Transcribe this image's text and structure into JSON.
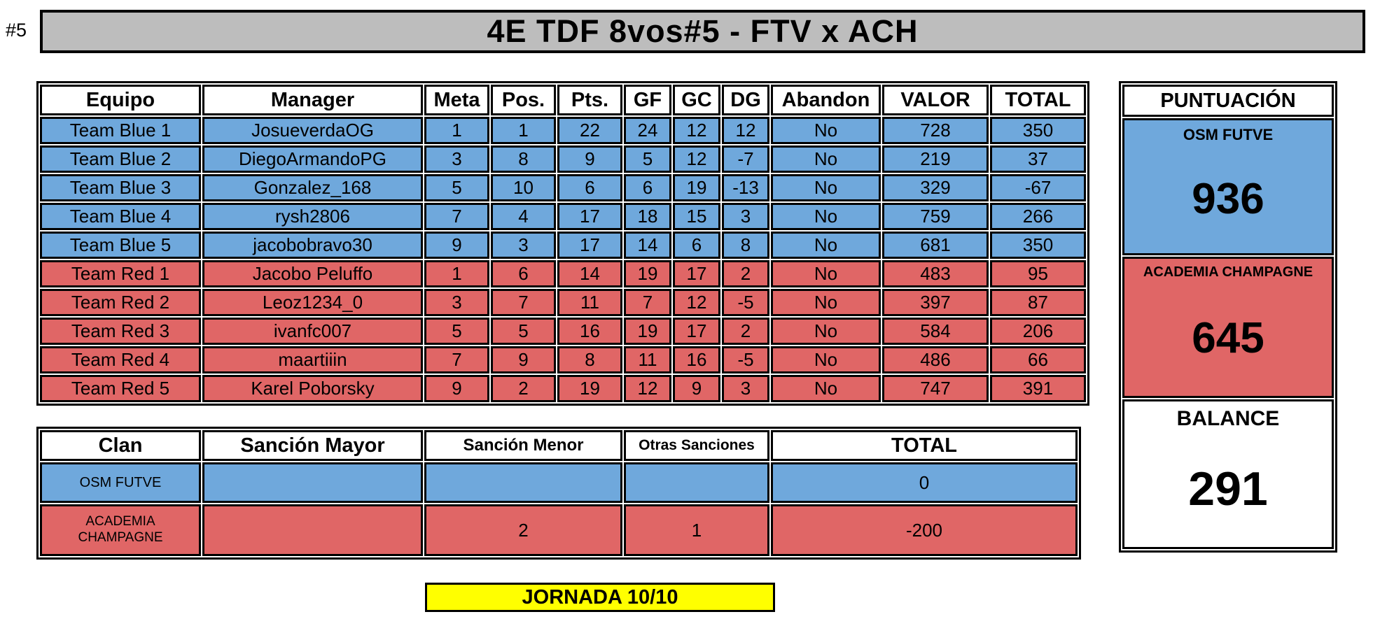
{
  "header": {
    "tag": "#5",
    "title": "4E TDF 8vos#5 - FTV x ACH"
  },
  "standings": {
    "columns": [
      "Equipo",
      "Manager",
      "Meta",
      "Pos.",
      "Pts.",
      "GF",
      "GC",
      "DG",
      "Abandon",
      "VALOR",
      "TOTAL"
    ],
    "rows": [
      {
        "side": "blue",
        "team": "Team Blue 1",
        "manager": "JosueverdaOG",
        "meta": "1",
        "pos": "1",
        "pts": "22",
        "gf": "24",
        "gc": "12",
        "dg": "12",
        "abandon": "No",
        "valor": "728",
        "total": "350"
      },
      {
        "side": "blue",
        "team": "Team Blue 2",
        "manager": "DiegoArmandoPG",
        "meta": "3",
        "pos": "8",
        "pts": "9",
        "gf": "5",
        "gc": "12",
        "dg": "-7",
        "abandon": "No",
        "valor": "219",
        "total": "37"
      },
      {
        "side": "blue",
        "team": "Team Blue 3",
        "manager": "Gonzalez_168",
        "meta": "5",
        "pos": "10",
        "pts": "6",
        "gf": "6",
        "gc": "19",
        "dg": "-13",
        "abandon": "No",
        "valor": "329",
        "total": "-67"
      },
      {
        "side": "blue",
        "team": "Team Blue 4",
        "manager": "rysh2806",
        "meta": "7",
        "pos": "4",
        "pts": "17",
        "gf": "18",
        "gc": "15",
        "dg": "3",
        "abandon": "No",
        "valor": "759",
        "total": "266"
      },
      {
        "side": "blue",
        "team": "Team Blue 5",
        "manager": "jacobobravo30",
        "meta": "9",
        "pos": "3",
        "pts": "17",
        "gf": "14",
        "gc": "6",
        "dg": "8",
        "abandon": "No",
        "valor": "681",
        "total": "350"
      },
      {
        "side": "red",
        "team": "Team Red 1",
        "manager": "Jacobo Peluffo",
        "meta": "1",
        "pos": "6",
        "pts": "14",
        "gf": "19",
        "gc": "17",
        "dg": "2",
        "abandon": "No",
        "valor": "483",
        "total": "95"
      },
      {
        "side": "red",
        "team": "Team Red 2",
        "manager": "Leoz1234_0",
        "meta": "3",
        "pos": "7",
        "pts": "11",
        "gf": "7",
        "gc": "12",
        "dg": "-5",
        "abandon": "No",
        "valor": "397",
        "total": "87"
      },
      {
        "side": "red",
        "team": "Team Red 3",
        "manager": "ivanfc007",
        "meta": "5",
        "pos": "5",
        "pts": "16",
        "gf": "19",
        "gc": "17",
        "dg": "2",
        "abandon": "No",
        "valor": "584",
        "total": "206"
      },
      {
        "side": "red",
        "team": "Team Red 4",
        "manager": "maartiiin",
        "meta": "7",
        "pos": "9",
        "pts": "8",
        "gf": "11",
        "gc": "16",
        "dg": "-5",
        "abandon": "No",
        "valor": "486",
        "total": "66"
      },
      {
        "side": "red",
        "team": "Team Red 5",
        "manager": "Karel Poborsky",
        "meta": "9",
        "pos": "2",
        "pts": "19",
        "gf": "12",
        "gc": "9",
        "dg": "3",
        "abandon": "No",
        "valor": "747",
        "total": "391"
      }
    ]
  },
  "score_panel": {
    "title": "PUNTUACIÓN",
    "blue_team": {
      "name": "OSM FUTVE",
      "score": "936"
    },
    "red_team": {
      "name": "ACADEMIA CHAMPAGNE",
      "score": "645"
    },
    "balance": {
      "label": "BALANCE",
      "value": "291"
    }
  },
  "sanctions": {
    "columns": [
      "Clan",
      "Sanción Mayor",
      "Sanción Menor",
      "Otras Sanciones",
      "TOTAL"
    ],
    "rows": [
      {
        "side": "blue",
        "clan": "OSM FUTVE",
        "mayor": "",
        "menor": "",
        "otras": "",
        "total": "0"
      },
      {
        "side": "red",
        "clan": "ACADEMIA CHAMPAGNE",
        "mayor": "",
        "menor": "2",
        "otras": "1",
        "total": "-200"
      }
    ]
  },
  "footer": {
    "jornada": "JORNADA 10/10"
  },
  "colors": {
    "blue": "#6FA8DC",
    "red": "#E06666",
    "banner_gray": "#BDBDBD",
    "yellow": "#FFFF00",
    "border": "#000000"
  }
}
